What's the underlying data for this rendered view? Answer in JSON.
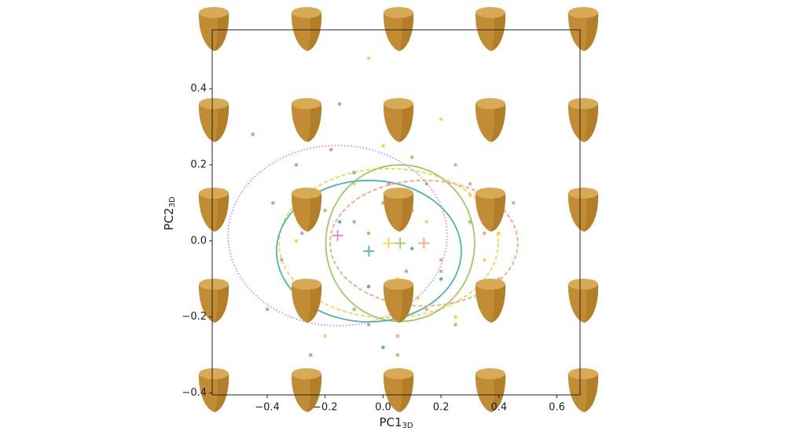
{
  "chart_data": {
    "type": "scatter",
    "x_label": {
      "text": "PC1",
      "subscript": "3D"
    },
    "y_label": {
      "text": "PC2",
      "subscript": "3D"
    },
    "xlim": [
      -0.59,
      0.68
    ],
    "ylim": [
      -0.405,
      0.555
    ],
    "xticks": [
      {
        "value": -0.4,
        "label": "−0.4"
      },
      {
        "value": -0.2,
        "label": "−0.2"
      },
      {
        "value": 0,
        "label": "0.0"
      },
      0.2,
      0.4,
      0.6
    ],
    "yticks": [
      {
        "value": -0.4,
        "label": "−0.4"
      },
      {
        "value": -0.2,
        "label": "−0.2"
      },
      {
        "value": 0,
        "label": "0.0"
      },
      0.2,
      0.4
    ],
    "grid": false,
    "series": [
      {
        "color": "#d98ad9",
        "line_style": "dotted",
        "x": [
          -0.45,
          -0.38,
          -0.3,
          -0.22,
          -0.15,
          -0.1,
          -0.05,
          0.02,
          -0.35,
          -0.25,
          -0.18,
          0.08,
          -0.28,
          -0.4
        ],
        "values": [
          0.28,
          0.1,
          0.2,
          -0.12,
          0.36,
          0.05,
          -0.22,
          0.15,
          -0.05,
          -0.3,
          0.24,
          -0.08,
          0.02,
          -0.18
        ],
        "ellipse": {
          "cx": -0.157,
          "cy": 0.014,
          "rx": 0.378,
          "ry": 0.237
        }
      },
      {
        "color": "#f2d64b",
        "line_style": "dashed",
        "x": [
          -0.1,
          0.05,
          0.15,
          0.25,
          0.3,
          -0.2,
          0.0,
          0.1,
          0.35,
          -0.05,
          0.2,
          0.4,
          0.12,
          -0.3
        ],
        "values": [
          0.15,
          -0.1,
          0.05,
          -0.2,
          0.12,
          -0.25,
          0.25,
          -0.35,
          -0.05,
          0.48,
          0.32,
          0.02,
          -0.15,
          0.0
        ],
        "ellipse": {
          "cx": 0.019,
          "cy": -0.006,
          "rx": 0.378,
          "ry": 0.196
        }
      },
      {
        "color": "#9ccc65",
        "line_style": "solid",
        "x": [
          0.0,
          0.1,
          0.2,
          -0.1,
          0.3,
          0.05,
          -0.2,
          0.15,
          0.25,
          -0.05
        ],
        "values": [
          0.1,
          0.22,
          -0.08,
          -0.18,
          0.05,
          -0.3,
          0.08,
          0.15,
          -0.22,
          0.02
        ],
        "ellipse": {
          "cx": 0.059,
          "cy": -0.006,
          "rx": 0.257,
          "ry": 0.206
        }
      },
      {
        "color": "#4db6ac",
        "line_style": "solid",
        "x": [
          -0.15,
          -0.05,
          0.05,
          -0.25,
          0.1,
          -0.1,
          0.0,
          -0.3,
          0.2
        ],
        "values": [
          0.05,
          -0.12,
          0.1,
          -0.2,
          -0.02,
          0.18,
          -0.28,
          0.12,
          -0.1
        ],
        "ellipse": {
          "cx": -0.049,
          "cy": -0.027,
          "rx": 0.319,
          "ry": 0.186
        }
      },
      {
        "color": "#f4a582",
        "line_style": "dashed",
        "x": [
          0.1,
          0.2,
          0.3,
          0.4,
          0.15,
          0.25,
          0.35,
          0.05,
          0.45
        ],
        "values": [
          0.08,
          -0.05,
          0.15,
          -0.1,
          -0.18,
          0.2,
          0.02,
          -0.25,
          0.1
        ],
        "ellipse": {
          "cx": 0.141,
          "cy": -0.006,
          "rx": 0.324,
          "ry": 0.165
        }
      }
    ]
  }
}
